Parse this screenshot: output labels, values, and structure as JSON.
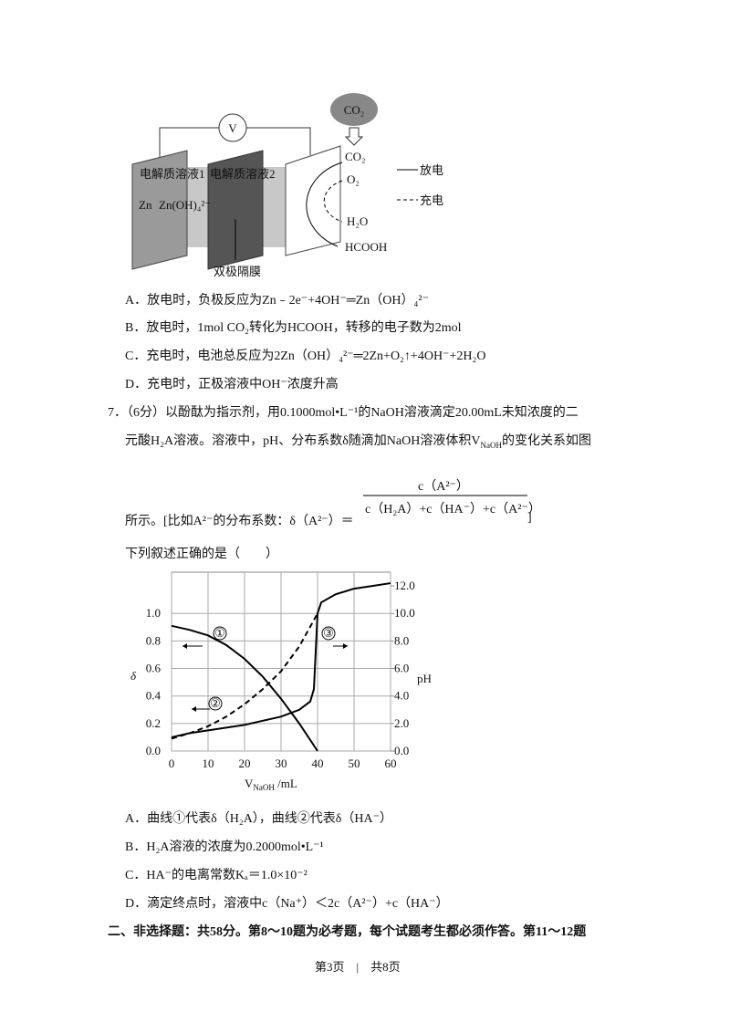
{
  "diagram": {
    "voltmeter": "V",
    "cloud": "CO₂",
    "co2": "CO₂",
    "o2": "O₂",
    "h2o": "H₂O",
    "hcooh": "HCOOH",
    "electrolyte1": "电解质溶液1",
    "electrolyte2": "电解质溶液2",
    "zn": "Zn",
    "zincate": "Zn(OH)₄²⁻",
    "membrane": "双极隔膜",
    "discharge": "放电",
    "charge": "充电"
  },
  "q6_options": [
    "A．放电时，负极反应为Zn﹣2e⁻+4OH⁻═Zn（OH）₄²⁻",
    "B．放电时，1mol CO₂转化为HCOOH，转移的电子数为2mol",
    "C．充电时，电池总反应为2Zn（OH）₄²⁻═2Zn+O₂↑+4OH⁻+2H₂O",
    "D．充电时，正极溶液中OH⁻浓度升高"
  ],
  "q7": {
    "line1": "7．（6分）以酚酞为指示剂，用0.1000mol•L⁻¹的NaOH溶液滴定20.00mL未知浓度的二",
    "line2": [
      "元酸H₂A溶液。溶液中，pH、分布系数δ随滴加NaOH溶液体积V",
      "NaOH",
      "的变化关系如图"
    ],
    "line3": "所示。[比如A²⁻的分布系数：δ（A²⁻）＝",
    "numerator": "c（A²⁻）",
    "denominator": "c（H₂A）+c（HA⁻）+c（A²⁻）",
    "bracket": "]",
    "prompt": "下列叙述正确的是（　　）",
    "chart": {
      "type": "line",
      "x_label": [
        "V",
        "NaOH",
        " /mL"
      ],
      "y_label": "δ",
      "y2_label": "pH",
      "xlim": [
        0,
        60
      ],
      "xticks": [
        0,
        10,
        20,
        30,
        40,
        50,
        60
      ],
      "ylim": [
        0,
        1.3
      ],
      "yticks": [
        {
          "value": 0,
          "label": "0.0"
        },
        {
          "value": 0.2,
          "label": "0.2"
        },
        {
          "value": 0.4,
          "label": "0.4"
        },
        {
          "value": 0.6,
          "label": "0.6"
        },
        {
          "value": 0.8,
          "label": "0.8"
        },
        {
          "value": 1,
          "label": "1.0"
        }
      ],
      "y2lim": [
        0,
        13
      ],
      "y2ticks": [
        {
          "value": 0,
          "label": "0.0"
        },
        {
          "value": 2,
          "label": "2.0"
        },
        {
          "value": 4,
          "label": "4.0"
        },
        {
          "value": 6,
          "label": "6.0"
        },
        {
          "value": 8,
          "label": "8.0"
        },
        {
          "value": 10,
          "label": "10.0"
        },
        {
          "value": 12,
          "label": "12.0"
        }
      ],
      "grid": true,
      "series": [
        {
          "name": "①",
          "color": "#000000",
          "dashed": false,
          "x": [
            0,
            5,
            10,
            15,
            20,
            25,
            30,
            35,
            40
          ],
          "values": [
            0.91,
            0.88,
            0.84,
            0.77,
            0.67,
            0.54,
            0.38,
            0.2,
            0
          ]
        },
        {
          "name": "②",
          "color": "#000000",
          "dashed": true,
          "x": [
            0,
            5,
            10,
            15,
            20,
            25,
            30,
            35,
            40
          ],
          "values": [
            0.09,
            0.13,
            0.18,
            0.25,
            0.34,
            0.45,
            0.58,
            0.76,
            1.0
          ]
        },
        {
          "name": "③",
          "color": "#000000",
          "dashed": false,
          "axis": "y2",
          "x": [
            0,
            5,
            10,
            15,
            20,
            25,
            30,
            35,
            38,
            39,
            40,
            41,
            45,
            50,
            55,
            60
          ],
          "values": [
            1.0,
            1.3,
            1.5,
            1.7,
            1.9,
            2.2,
            2.5,
            3.0,
            3.6,
            4.5,
            10.0,
            10.8,
            11.4,
            11.8,
            12.0,
            12.2
          ]
        }
      ]
    }
  },
  "q7_options": [
    "A．曲线①代表δ（H₂A），曲线②代表δ（HA⁻）",
    "B．H₂A溶液的浓度为0.2000mol•L⁻¹",
    "C．HA⁻的电离常数Kₐ＝1.0×10⁻²",
    "D．滴定终点时，溶液中c（Na⁺）＜2c（A²⁻）+c（HA⁻）"
  ],
  "section": "二、非选择题：共58分。第8～10题为必考题，每个试题考生都必须作答。第11～12题",
  "footer": "第3页　|　共8页"
}
